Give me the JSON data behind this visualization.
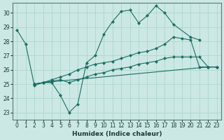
{
  "xlabel": "Humidex (Indice chaleur)",
  "bg_color": "#cce8e4",
  "grid_color": "#b0d8d0",
  "line_color": "#1a6e64",
  "xlim": [
    -0.5,
    23.5
  ],
  "ylim": [
    22.5,
    30.7
  ],
  "xticks": [
    0,
    1,
    2,
    3,
    4,
    5,
    6,
    7,
    8,
    9,
    10,
    11,
    12,
    13,
    14,
    15,
    16,
    17,
    18,
    19,
    20,
    21,
    22,
    23
  ],
  "yticks": [
    23,
    24,
    25,
    26,
    27,
    28,
    29,
    30
  ],
  "line1_x": [
    0,
    1,
    2,
    3,
    4,
    5,
    6,
    7,
    8,
    9,
    10,
    11,
    12,
    13,
    14,
    15,
    16,
    17,
    18,
    20,
    21
  ],
  "line1_y": [
    28.8,
    27.8,
    24.9,
    25.1,
    25.1,
    24.2,
    23.0,
    23.6,
    26.5,
    27.0,
    28.5,
    29.4,
    30.1,
    30.2,
    29.3,
    29.8,
    30.5,
    30.0,
    29.2,
    28.3,
    28.1
  ],
  "line2_x": [
    2,
    3,
    22,
    23
  ],
  "line2_y": [
    25.0,
    25.1,
    26.2,
    26.2
  ],
  "line3_x": [
    2,
    3,
    4,
    5,
    6,
    7,
    8,
    9,
    10,
    11,
    12,
    13,
    14,
    15,
    16,
    17,
    18,
    19,
    20,
    21,
    22,
    23
  ],
  "line3_y": [
    25.0,
    25.1,
    25.2,
    25.3,
    25.1,
    25.3,
    25.5,
    25.7,
    25.8,
    26.0,
    26.1,
    26.2,
    26.4,
    26.5,
    26.6,
    26.8,
    26.9,
    26.9,
    26.9,
    26.9,
    26.2,
    26.2
  ],
  "line4_x": [
    2,
    3,
    4,
    5,
    6,
    7,
    8,
    9,
    10,
    11,
    12,
    13,
    14,
    15,
    16,
    17,
    18,
    19,
    20,
    21,
    22,
    23
  ],
  "line4_y": [
    25.0,
    25.1,
    25.3,
    25.5,
    25.7,
    26.0,
    26.2,
    26.4,
    26.5,
    26.6,
    26.8,
    27.0,
    27.2,
    27.3,
    27.5,
    27.8,
    28.3,
    28.2,
    28.1,
    26.2,
    26.2,
    26.2
  ]
}
